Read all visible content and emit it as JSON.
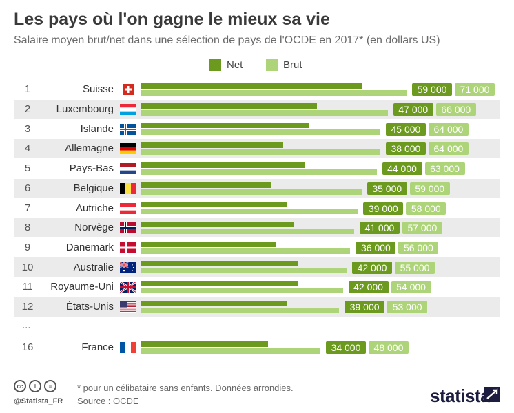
{
  "title": "Les pays où l'on gagne le mieux sa vie",
  "subtitle": "Salaire moyen brut/net dans une sélection de pays de l'OCDE en 2017* (en dollars US)",
  "colors": {
    "net": "#6b9a1f",
    "brut": "#aed47a",
    "band": "#ebebeb"
  },
  "legend": {
    "net": "Net",
    "brut": "Brut"
  },
  "ellipsis": "...",
  "footer": {
    "handle": "@Statista_FR",
    "note": "* pour un célibataire sans enfants. Données arrondies.",
    "source": "Source : OCDE",
    "brand": "statista"
  },
  "chart_data": {
    "type": "bar",
    "orientation": "horizontal",
    "xlim": [
      0,
      71000
    ],
    "series": [
      {
        "name": "Net",
        "color": "#6b9a1f",
        "values": [
          59000,
          47000,
          45000,
          38000,
          44000,
          35000,
          39000,
          41000,
          36000,
          42000,
          42000,
          39000,
          34000
        ]
      },
      {
        "name": "Brut",
        "color": "#aed47a",
        "values": [
          71000,
          66000,
          64000,
          64000,
          63000,
          59000,
          58000,
          57000,
          56000,
          55000,
          54000,
          53000,
          48000
        ]
      }
    ],
    "rows": [
      {
        "rank": "1",
        "country": "Suisse",
        "flag": "ch",
        "net_label": "59 000",
        "brut_label": "71 000"
      },
      {
        "rank": "2",
        "country": "Luxembourg",
        "flag": "lu",
        "net_label": "47 000",
        "brut_label": "66 000"
      },
      {
        "rank": "3",
        "country": "Islande",
        "flag": "is",
        "net_label": "45 000",
        "brut_label": "64 000"
      },
      {
        "rank": "4",
        "country": "Allemagne",
        "flag": "de",
        "net_label": "38 000",
        "brut_label": "64 000"
      },
      {
        "rank": "5",
        "country": "Pays-Bas",
        "flag": "nl",
        "net_label": "44 000",
        "brut_label": "63 000"
      },
      {
        "rank": "6",
        "country": "Belgique",
        "flag": "be",
        "net_label": "35 000",
        "brut_label": "59 000"
      },
      {
        "rank": "7",
        "country": "Autriche",
        "flag": "at",
        "net_label": "39 000",
        "brut_label": "58 000"
      },
      {
        "rank": "8",
        "country": "Norvège",
        "flag": "no",
        "net_label": "41 000",
        "brut_label": "57 000"
      },
      {
        "rank": "9",
        "country": "Danemark",
        "flag": "dk",
        "net_label": "36 000",
        "brut_label": "56 000"
      },
      {
        "rank": "10",
        "country": "Australie",
        "flag": "au",
        "net_label": "42 000",
        "brut_label": "55 000"
      },
      {
        "rank": "11",
        "country": "Royaume-Uni",
        "flag": "gb",
        "net_label": "42 000",
        "brut_label": "54 000"
      },
      {
        "rank": "12",
        "country": "États-Unis",
        "flag": "us",
        "net_label": "39 000",
        "brut_label": "53 000"
      },
      {
        "rank": "16",
        "country": "France",
        "flag": "fr",
        "net_label": "34 000",
        "brut_label": "48 000"
      }
    ]
  }
}
